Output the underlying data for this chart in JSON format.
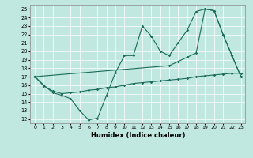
{
  "xlabel": "Humidex (Indice chaleur)",
  "bg_color": "#c0e8e0",
  "line_color": "#1a6b5a",
  "xlim": [
    -0.5,
    23.5
  ],
  "ylim": [
    11.5,
    25.5
  ],
  "xticks": [
    0,
    1,
    2,
    3,
    4,
    5,
    6,
    7,
    8,
    9,
    10,
    11,
    12,
    13,
    14,
    15,
    16,
    17,
    18,
    19,
    20,
    21,
    22,
    23
  ],
  "yticks": [
    12,
    13,
    14,
    15,
    16,
    17,
    18,
    19,
    20,
    21,
    22,
    23,
    24,
    25
  ],
  "line_zigzag_x": [
    0,
    1,
    2,
    3,
    4,
    5,
    6,
    7,
    8,
    9,
    10,
    11,
    12,
    13,
    14,
    15,
    16,
    17,
    18,
    19,
    20,
    21,
    22,
    23
  ],
  "line_zigzag_y": [
    17.0,
    16.0,
    15.1,
    14.8,
    14.4,
    13.0,
    11.9,
    12.1,
    14.8,
    17.5,
    19.5,
    19.5,
    23.0,
    21.8,
    20.0,
    19.5,
    21.0,
    22.5,
    24.7,
    25.0,
    24.8,
    22.0,
    19.5,
    17.0
  ],
  "line_diag_x": [
    0,
    15,
    16,
    17,
    18,
    19,
    20,
    21,
    22,
    23
  ],
  "line_diag_y": [
    17.0,
    18.3,
    18.8,
    19.3,
    19.8,
    25.0,
    24.8,
    22.0,
    19.5,
    17.0
  ],
  "line_flat_x": [
    0,
    1,
    2,
    3,
    4,
    5,
    6,
    7,
    8,
    9,
    10,
    11,
    12,
    13,
    14,
    15,
    16,
    17,
    18,
    19,
    20,
    21,
    22,
    23
  ],
  "line_flat_y": [
    17.0,
    15.9,
    15.3,
    15.0,
    15.1,
    15.2,
    15.4,
    15.5,
    15.7,
    15.8,
    16.0,
    16.2,
    16.3,
    16.4,
    16.5,
    16.6,
    16.7,
    16.8,
    17.0,
    17.1,
    17.2,
    17.3,
    17.4,
    17.4
  ]
}
